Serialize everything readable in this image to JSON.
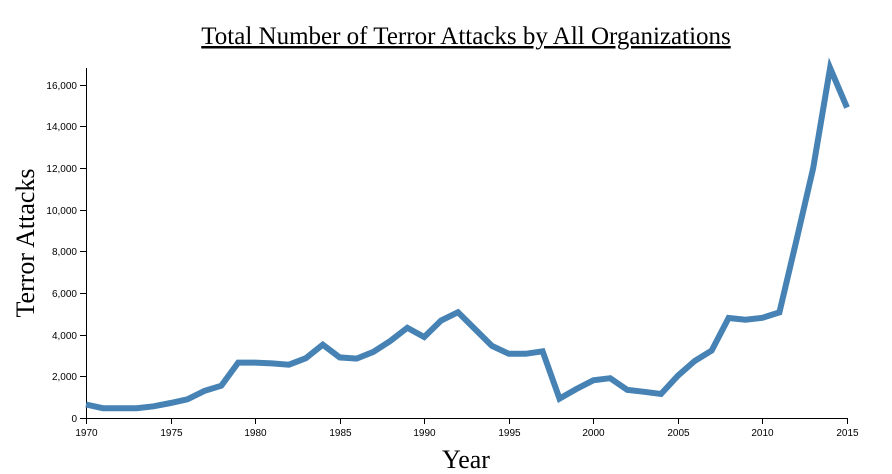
{
  "chart_data": {
    "type": "line",
    "title": "Total Number of Terror Attacks by All Organizations",
    "xlabel": "Year",
    "ylabel": "Terror Attacks",
    "xlim": [
      1970,
      2015
    ],
    "ylim": [
      0,
      16800
    ],
    "grid": false,
    "x_ticks": [
      1970,
      1975,
      1980,
      1985,
      1990,
      1995,
      2000,
      2005,
      2010,
      2015
    ],
    "x_tick_labels": [
      "1970",
      "1975",
      "1980",
      "1985",
      "1990",
      "1995",
      "2000",
      "2005",
      "2010",
      "2015"
    ],
    "y_ticks": [
      0,
      2000,
      4000,
      6000,
      8000,
      10000,
      12000,
      14000,
      16000
    ],
    "y_tick_labels": [
      "0",
      "2,000",
      "4,000",
      "6,000",
      "8,000",
      "10,000",
      "12,000",
      "14,000",
      "16,000"
    ],
    "series": [
      {
        "color": "#4682b4",
        "x": [
          1970,
          1971,
          1972,
          1973,
          1974,
          1975,
          1976,
          1977,
          1978,
          1979,
          1980,
          1981,
          1982,
          1983,
          1984,
          1985,
          1986,
          1987,
          1988,
          1989,
          1990,
          1991,
          1992,
          1994,
          1995,
          1996,
          1997,
          1998,
          1999,
          2000,
          2001,
          2002,
          2003,
          2004,
          2005,
          2006,
          2007,
          2008,
          2009,
          2010,
          2011,
          2012,
          2013,
          2014,
          2015
        ],
        "values": [
          650,
          470,
          470,
          470,
          560,
          720,
          900,
          1300,
          1550,
          2660,
          2660,
          2620,
          2560,
          2870,
          3520,
          2910,
          2850,
          3180,
          3700,
          4330,
          3890,
          4680,
          5080,
          3460,
          3080,
          3080,
          3200,
          930,
          1390,
          1810,
          1910,
          1350,
          1260,
          1150,
          2030,
          2740,
          3240,
          4800,
          4720,
          4810,
          5070,
          8500,
          12000,
          16800,
          14900
        ]
      }
    ]
  }
}
